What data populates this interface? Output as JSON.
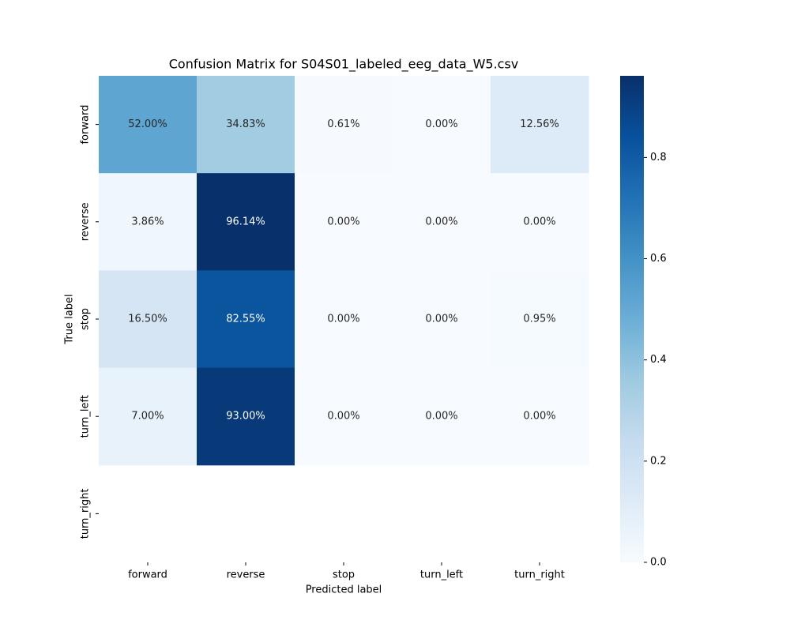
{
  "chart_data": {
    "type": "heatmap",
    "title": "Confusion Matrix for S04S01_labeled_eeg_data_W5.csv",
    "x_label": "Predicted label",
    "y_label": "True label",
    "x_categories": [
      "forward",
      "reverse",
      "stop",
      "turn_left",
      "turn_right"
    ],
    "y_categories": [
      "forward",
      "reverse",
      "stop",
      "turn_left",
      "turn_right"
    ],
    "values": [
      [
        0.52,
        0.3483,
        0.0061,
        0.0,
        0.1256
      ],
      [
        0.0386,
        0.9614,
        0.0,
        0.0,
        0.0
      ],
      [
        0.165,
        0.8255,
        0.0,
        0.0,
        0.0095
      ],
      [
        0.07,
        0.93,
        0.0,
        0.0,
        0.0
      ],
      [
        null,
        null,
        null,
        null,
        null
      ]
    ],
    "value_labels": [
      [
        "52.00%",
        "34.83%",
        "0.61%",
        "0.00%",
        "12.56%"
      ],
      [
        "3.86%",
        "96.14%",
        "0.00%",
        "0.00%",
        "0.00%"
      ],
      [
        "16.50%",
        "82.55%",
        "0.00%",
        "0.00%",
        "0.95%"
      ],
      [
        "7.00%",
        "93.00%",
        "0.00%",
        "0.00%",
        "0.00%"
      ],
      [
        null,
        null,
        null,
        null,
        null
      ]
    ],
    "colormap": "Blues",
    "clim": [
      0,
      0.9614
    ],
    "cticks": [
      {
        "value": 0,
        "label": "0.0"
      },
      0.2,
      0.4,
      0.6,
      0.8
    ]
  }
}
